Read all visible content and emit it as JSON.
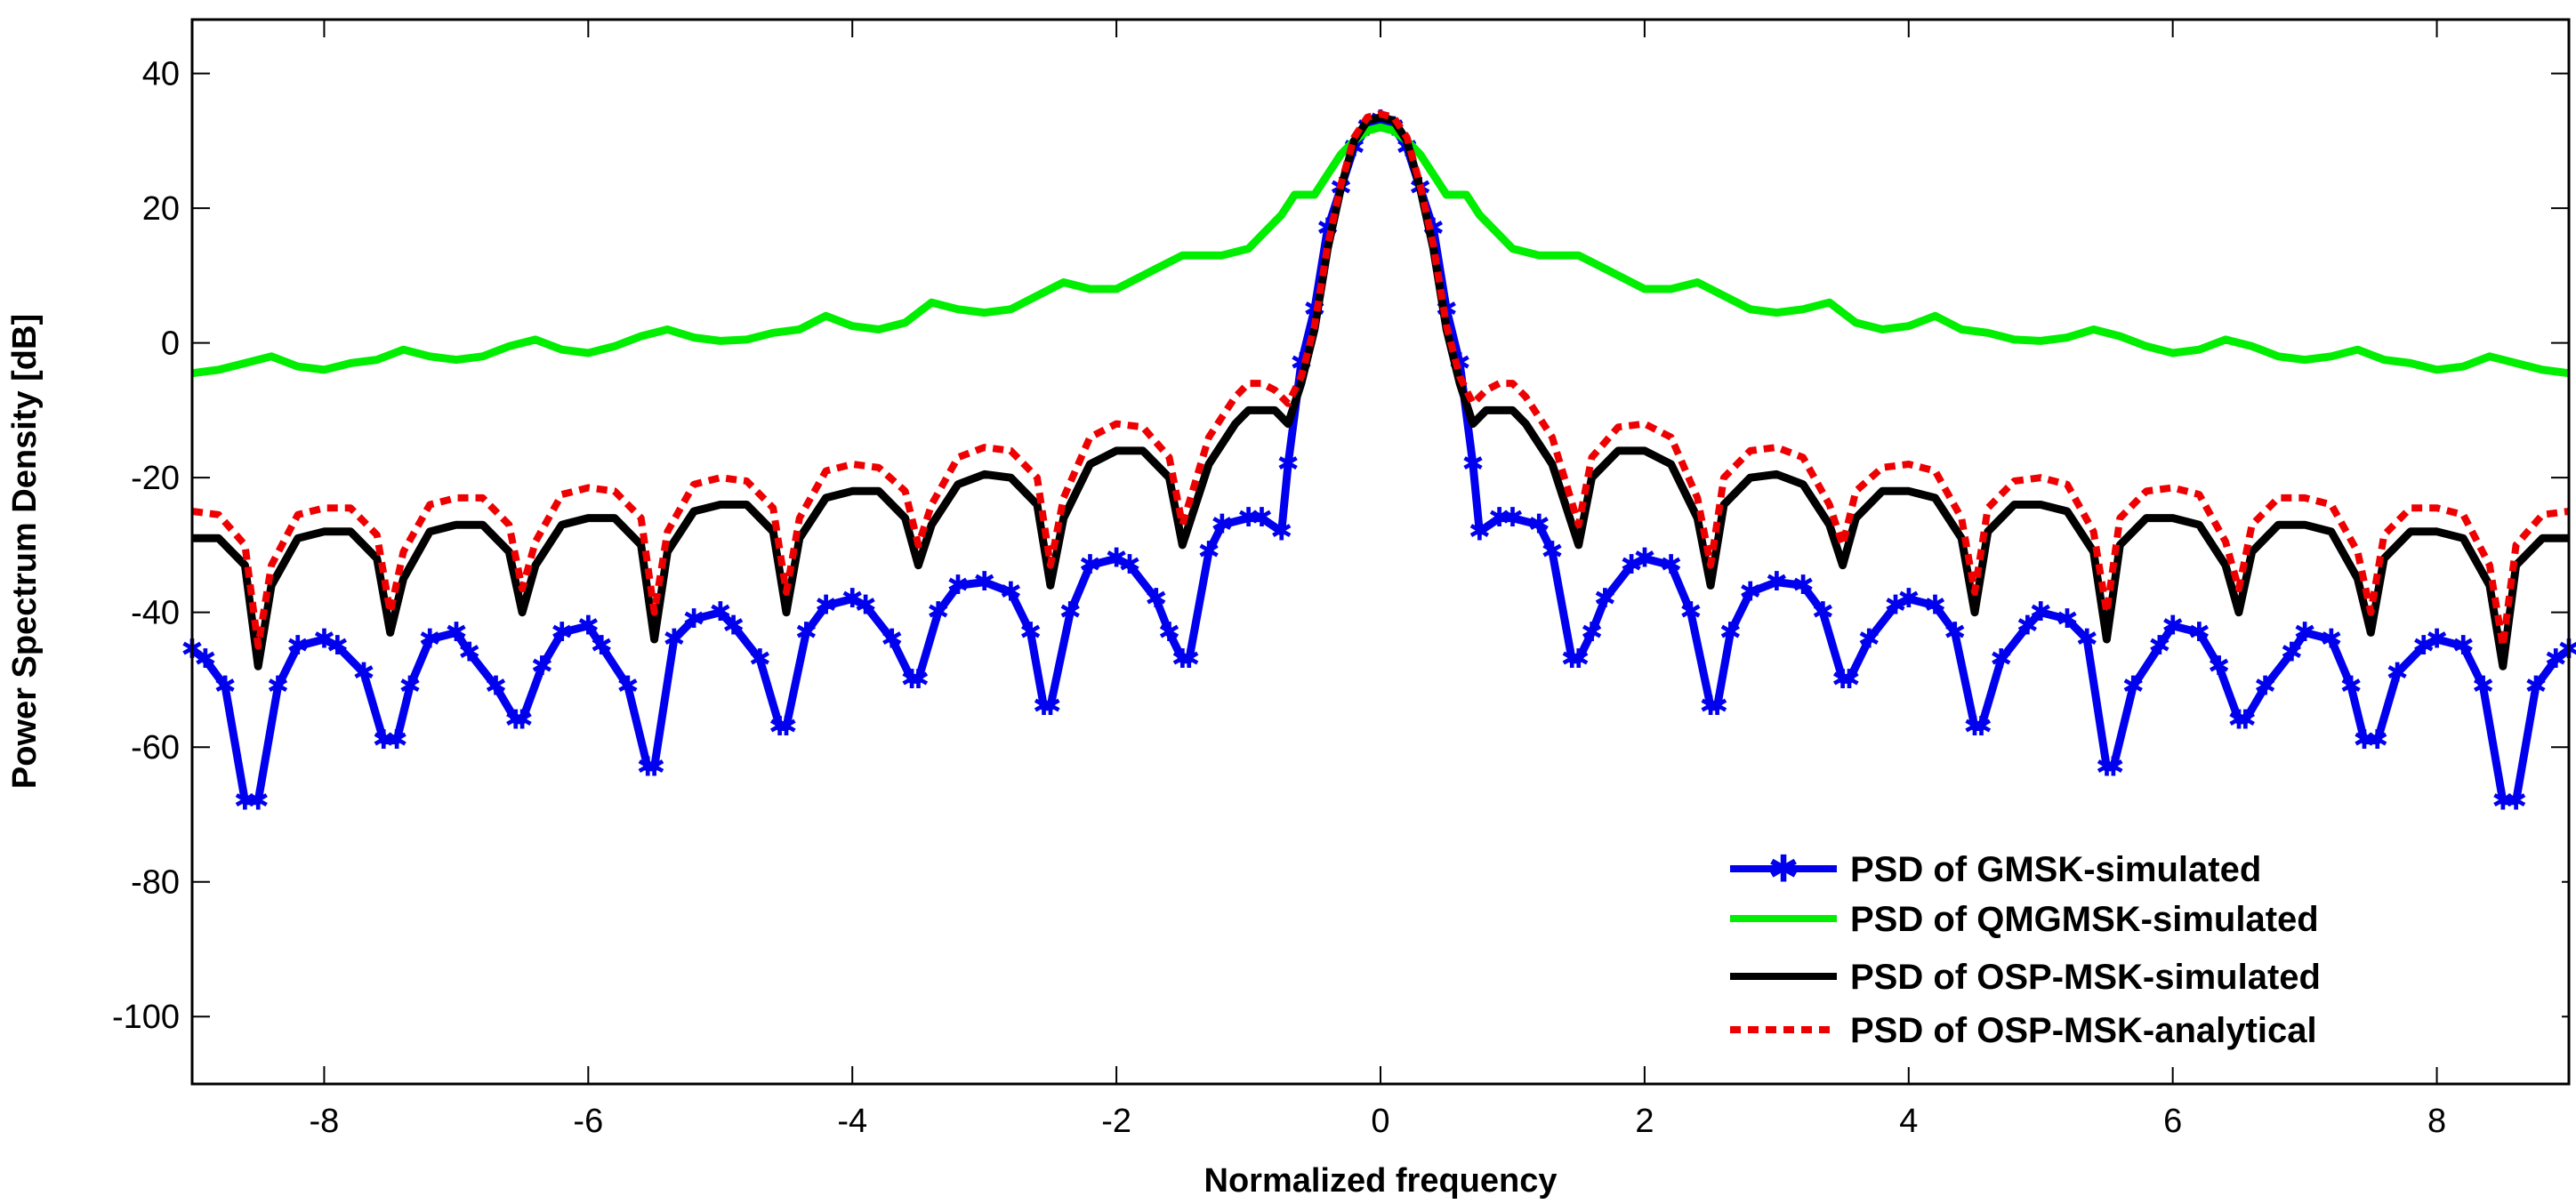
{
  "chart_data": {
    "type": "line",
    "title": "",
    "xlabel": "Normalized frequency",
    "ylabel": "Power Spectrum Density [dB]",
    "xlim": [
      -9,
      9
    ],
    "ylim": [
      -110,
      48
    ],
    "xticks": [
      -8,
      -6,
      -4,
      -2,
      0,
      2,
      4,
      6,
      8
    ],
    "yticks": [
      40,
      20,
      0,
      -20,
      -40,
      -60,
      -80,
      -100
    ],
    "legend_position": "bottom-right",
    "series": [
      {
        "name": "PSD of GMSK-simulated",
        "color": "#0000ee",
        "style": "solid-marker",
        "x": [
          0,
          0.1,
          0.2,
          0.3,
          0.4,
          0.5,
          0.6,
          0.7,
          0.75,
          0.9,
          1.0,
          1.2,
          1.3,
          1.45,
          1.5,
          1.6,
          1.7,
          1.9,
          2.0,
          2.2,
          2.35,
          2.5,
          2.55,
          2.65,
          2.8,
          3.0,
          3.2,
          3.35,
          3.5,
          3.55,
          3.7,
          3.9,
          4.0,
          4.2,
          4.35,
          4.5,
          4.55,
          4.7,
          4.9,
          5.0,
          5.2,
          5.35,
          5.5,
          5.55,
          5.7,
          5.9,
          6.0,
          6.2,
          6.35,
          6.5,
          6.55,
          6.7,
          6.9,
          7.0,
          7.2,
          7.35,
          7.45,
          7.55,
          7.7,
          7.9,
          8.0,
          8.2,
          8.35,
          8.5,
          8.6,
          8.75,
          8.9,
          9.0
        ],
        "y": [
          33,
          32,
          29,
          23,
          17,
          5,
          -3,
          -18,
          -28,
          -26,
          -26,
          -27,
          -31,
          -47,
          -47,
          -43,
          -38,
          -33,
          -32,
          -33,
          -40,
          -54,
          -54,
          -43,
          -37,
          -35.5,
          -36,
          -40,
          -50,
          -50,
          -44,
          -39,
          -38,
          -39,
          -43,
          -57,
          -57,
          -47,
          -42,
          -40,
          -41,
          -44,
          -63,
          -63,
          -51,
          -45,
          -42,
          -43,
          -48,
          -56,
          -56,
          -51,
          -46,
          -43,
          -44,
          -51,
          -59,
          -59,
          -49,
          -45,
          -44,
          -45,
          -51,
          -68,
          -68,
          -51,
          -47,
          -45.5
        ]
      },
      {
        "name": "PSD of QMGMSK-simulated",
        "color": "#00ee00",
        "style": "solid",
        "x": [
          0,
          0.1,
          0.2,
          0.3,
          0.4,
          0.5,
          0.55,
          0.65,
          0.75,
          0.9,
          1.0,
          1.2,
          1.35,
          1.5,
          1.7,
          2.0,
          2.2,
          2.4,
          2.6,
          2.8,
          3.0,
          3.2,
          3.4,
          3.6,
          3.8,
          4.0,
          4.2,
          4.4,
          4.6,
          4.8,
          5.0,
          5.2,
          5.4,
          5.6,
          5.8,
          6.0,
          6.2,
          6.4,
          6.6,
          6.8,
          7.0,
          7.2,
          7.4,
          7.6,
          7.8,
          8.0,
          8.2,
          8.4,
          8.6,
          8.8,
          9.0
        ],
        "y": [
          32,
          31.5,
          30,
          28,
          25,
          22,
          22,
          22,
          19,
          16,
          14,
          13,
          13,
          13,
          11,
          8,
          8,
          9,
          7,
          5,
          4.5,
          5,
          6,
          3,
          2,
          2.5,
          4,
          2,
          1.5,
          0.5,
          0.3,
          0.8,
          2,
          1,
          -0.5,
          -1.5,
          -1,
          0.5,
          -0.5,
          -2,
          -2.5,
          -2,
          -1,
          -2.5,
          -3,
          -4,
          -3.5,
          -2,
          -3,
          -4,
          -4.5
        ]
      },
      {
        "name": "PSD of OSP-MSK-simulated",
        "color": "#000000",
        "style": "solid",
        "x": [
          0,
          0.1,
          0.2,
          0.3,
          0.4,
          0.5,
          0.6,
          0.7,
          0.8,
          0.9,
          1.0,
          1.1,
          1.3,
          1.5,
          1.6,
          1.8,
          2.0,
          2.2,
          2.4,
          2.5,
          2.6,
          2.8,
          3.0,
          3.2,
          3.4,
          3.5,
          3.6,
          3.8,
          4.0,
          4.2,
          4.4,
          4.5,
          4.6,
          4.8,
          5.0,
          5.2,
          5.4,
          5.5,
          5.6,
          5.8,
          6.0,
          6.2,
          6.4,
          6.5,
          6.6,
          6.8,
          7.0,
          7.2,
          7.4,
          7.5,
          7.6,
          7.8,
          8.0,
          8.2,
          8.4,
          8.5,
          8.6,
          8.8,
          9.0
        ],
        "y": [
          33.5,
          33,
          30,
          23,
          14,
          2,
          -6,
          -12,
          -10,
          -10,
          -10,
          -12,
          -18,
          -30,
          -20,
          -16,
          -16,
          -18,
          -26,
          -36,
          -24,
          -20,
          -19.5,
          -21,
          -27,
          -33,
          -26,
          -22,
          -22,
          -23,
          -29,
          -40,
          -28,
          -24,
          -24,
          -25,
          -31,
          -44,
          -30,
          -26,
          -26,
          -27,
          -33,
          -40,
          -31,
          -27,
          -27,
          -28,
          -35,
          -43,
          -32,
          -28,
          -28,
          -29,
          -36,
          -48,
          -33,
          -29,
          -29
        ]
      },
      {
        "name": "PSD of OSP-MSK-analytical",
        "color": "#ee0000",
        "style": "dotted",
        "x": [
          0,
          0.1,
          0.2,
          0.3,
          0.4,
          0.5,
          0.6,
          0.7,
          0.8,
          0.9,
          1.0,
          1.1,
          1.3,
          1.5,
          1.6,
          1.8,
          2.0,
          2.2,
          2.4,
          2.5,
          2.6,
          2.8,
          3.0,
          3.2,
          3.4,
          3.5,
          3.6,
          3.8,
          4.0,
          4.2,
          4.4,
          4.5,
          4.6,
          4.8,
          5.0,
          5.2,
          5.4,
          5.5,
          5.6,
          5.8,
          6.0,
          6.2,
          6.4,
          6.5,
          6.6,
          6.8,
          7.0,
          7.2,
          7.4,
          7.5,
          7.6,
          7.8,
          8.0,
          8.2,
          8.4,
          8.5,
          8.6,
          8.8,
          9.0
        ],
        "y": [
          34,
          33.5,
          30.5,
          23.5,
          14.5,
          2.5,
          -5,
          -9,
          -7,
          -6,
          -6,
          -8,
          -14,
          -27,
          -17,
          -12.5,
          -12,
          -14,
          -23,
          -33,
          -20,
          -16,
          -15.5,
          -17,
          -24,
          -30,
          -22,
          -18.5,
          -18,
          -19,
          -26,
          -37,
          -24.5,
          -20.5,
          -20,
          -21,
          -28,
          -40,
          -26,
          -22,
          -21.5,
          -22.5,
          -29.5,
          -36.5,
          -27,
          -23,
          -23,
          -24,
          -31,
          -40,
          -28.5,
          -24.5,
          -24.5,
          -25.5,
          -33,
          -45,
          -30,
          -25.5,
          -25
        ]
      }
    ]
  }
}
